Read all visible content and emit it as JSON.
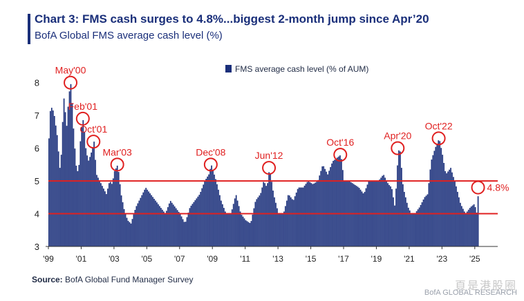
{
  "header": {
    "title": "Chart 3: FMS cash surges to 4.8%...biggest 2-month jump since Apr’20",
    "subtitle": "BofA Global FMS average cash level (%)"
  },
  "footer": {
    "source_label": "Source:",
    "source_text": " BofA Global Fund Manager Survey",
    "watermark": "頁是港股圈",
    "brand": "BofA GLOBAL RESEARCH"
  },
  "colors": {
    "bar": "#1a2f7a",
    "reference_line": "#e02020",
    "annotation": "#e02020",
    "axis": "#333333"
  },
  "chart_data": {
    "type": "bar",
    "title": "",
    "xlabel": "",
    "ylabel": "",
    "ylim": [
      3,
      8.5
    ],
    "y_ticks": [
      3,
      4,
      5,
      6,
      7,
      8
    ],
    "x_tick_labels": [
      "'99",
      "'01",
      "'03",
      "'05",
      "'07",
      "'09",
      "'11",
      "'13",
      "'15",
      "'17",
      "'19",
      "'21",
      "'23",
      "'25"
    ],
    "x_tick_years": [
      1999,
      2001,
      2003,
      2005,
      2007,
      2009,
      2011,
      2013,
      2015,
      2017,
      2019,
      2021,
      2023,
      2025
    ],
    "x_range": [
      1999.0,
      2026.4
    ],
    "legend": {
      "position": "top-center",
      "label": "FMS average cash level (% of AUM)"
    },
    "reference_lines": [
      5.0,
      4.0
    ],
    "anchors": [
      [
        1999.0,
        6.3
      ],
      [
        1999.1,
        7.3
      ],
      [
        1999.3,
        7.1
      ],
      [
        1999.5,
        6.4
      ],
      [
        1999.7,
        5.2
      ],
      [
        1999.9,
        7.6
      ],
      [
        2000.1,
        6.6
      ],
      [
        2000.2,
        7.6
      ],
      [
        2000.35,
        8.0
      ],
      [
        2000.5,
        6.6
      ],
      [
        2000.65,
        5.5
      ],
      [
        2000.8,
        5.2
      ],
      [
        2000.95,
        6.5
      ],
      [
        2001.1,
        6.9
      ],
      [
        2001.25,
        6.0
      ],
      [
        2001.4,
        5.6
      ],
      [
        2001.55,
        5.8
      ],
      [
        2001.75,
        6.2
      ],
      [
        2001.9,
        5.2
      ],
      [
        2002.1,
        5.0
      ],
      [
        2002.3,
        4.8
      ],
      [
        2002.5,
        4.6
      ],
      [
        2002.7,
        5.0
      ],
      [
        2002.85,
        4.9
      ],
      [
        2003.0,
        5.3
      ],
      [
        2003.2,
        5.5
      ],
      [
        2003.4,
        4.6
      ],
      [
        2003.6,
        4.1
      ],
      [
        2003.8,
        3.8
      ],
      [
        2004.0,
        3.7
      ],
      [
        2004.3,
        4.2
      ],
      [
        2004.6,
        4.5
      ],
      [
        2004.9,
        4.8
      ],
      [
        2005.2,
        4.6
      ],
      [
        2005.5,
        4.4
      ],
      [
        2005.8,
        4.2
      ],
      [
        2006.1,
        4.0
      ],
      [
        2006.4,
        4.4
      ],
      [
        2006.7,
        4.2
      ],
      [
        2007.0,
        4.0
      ],
      [
        2007.3,
        3.7
      ],
      [
        2007.6,
        4.2
      ],
      [
        2007.9,
        4.4
      ],
      [
        2008.2,
        4.6
      ],
      [
        2008.5,
        5.0
      ],
      [
        2008.75,
        5.2
      ],
      [
        2008.9,
        5.5
      ],
      [
        2009.2,
        5.0
      ],
      [
        2009.5,
        4.4
      ],
      [
        2009.8,
        4.0
      ],
      [
        2010.1,
        4.0
      ],
      [
        2010.4,
        4.6
      ],
      [
        2010.7,
        4.0
      ],
      [
        2011.0,
        3.8
      ],
      [
        2011.3,
        3.7
      ],
      [
        2011.6,
        4.4
      ],
      [
        2011.9,
        4.6
      ],
      [
        2012.1,
        5.0
      ],
      [
        2012.3,
        4.8
      ],
      [
        2012.45,
        5.4
      ],
      [
        2012.7,
        4.6
      ],
      [
        2013.0,
        4.0
      ],
      [
        2013.3,
        4.0
      ],
      [
        2013.6,
        4.6
      ],
      [
        2013.9,
        4.4
      ],
      [
        2014.2,
        4.8
      ],
      [
        2014.5,
        4.8
      ],
      [
        2014.8,
        5.0
      ],
      [
        2015.1,
        4.9
      ],
      [
        2015.4,
        5.0
      ],
      [
        2015.7,
        5.5
      ],
      [
        2016.0,
        5.2
      ],
      [
        2016.3,
        5.6
      ],
      [
        2016.55,
        5.7
      ],
      [
        2016.8,
        5.8
      ],
      [
        2017.0,
        5.0
      ],
      [
        2017.3,
        5.0
      ],
      [
        2017.6,
        4.9
      ],
      [
        2017.9,
        4.8
      ],
      [
        2018.2,
        4.6
      ],
      [
        2018.5,
        5.0
      ],
      [
        2018.8,
        5.0
      ],
      [
        2019.1,
        5.0
      ],
      [
        2019.4,
        5.2
      ],
      [
        2019.7,
        4.9
      ],
      [
        2019.9,
        4.8
      ],
      [
        2020.1,
        4.2
      ],
      [
        2020.3,
        5.9
      ],
      [
        2020.4,
        6.0
      ],
      [
        2020.6,
        4.8
      ],
      [
        2020.9,
        4.2
      ],
      [
        2021.1,
        4.0
      ],
      [
        2021.3,
        4.0
      ],
      [
        2021.6,
        4.2
      ],
      [
        2021.9,
        4.5
      ],
      [
        2022.1,
        4.6
      ],
      [
        2022.3,
        5.6
      ],
      [
        2022.55,
        6.0
      ],
      [
        2022.8,
        6.3
      ],
      [
        2023.0,
        5.8
      ],
      [
        2023.2,
        5.2
      ],
      [
        2023.5,
        5.4
      ],
      [
        2023.8,
        4.9
      ],
      [
        2024.1,
        4.3
      ],
      [
        2024.4,
        4.0
      ],
      [
        2024.7,
        4.2
      ],
      [
        2024.95,
        4.3
      ],
      [
        2025.1,
        4.0
      ],
      [
        2025.2,
        4.8
      ]
    ],
    "annotations": [
      {
        "label": "May'00",
        "x": 2000.35,
        "y": 8.0
      },
      {
        "label": "Feb'01",
        "x": 2001.1,
        "y": 6.9
      },
      {
        "label": "Oct'01",
        "x": 2001.75,
        "y": 6.2
      },
      {
        "label": "Mar'03",
        "x": 2003.2,
        "y": 5.5
      },
      {
        "label": "Dec'08",
        "x": 2008.9,
        "y": 5.5
      },
      {
        "label": "Jun'12",
        "x": 2012.45,
        "y": 5.4
      },
      {
        "label": "Oct'16",
        "x": 2016.8,
        "y": 5.8
      },
      {
        "label": "Apr'20",
        "x": 2020.3,
        "y": 6.0
      },
      {
        "label": "Oct'22",
        "x": 2022.8,
        "y": 6.3
      },
      {
        "label": "4.8%",
        "x": 2025.2,
        "y": 4.8
      }
    ]
  }
}
